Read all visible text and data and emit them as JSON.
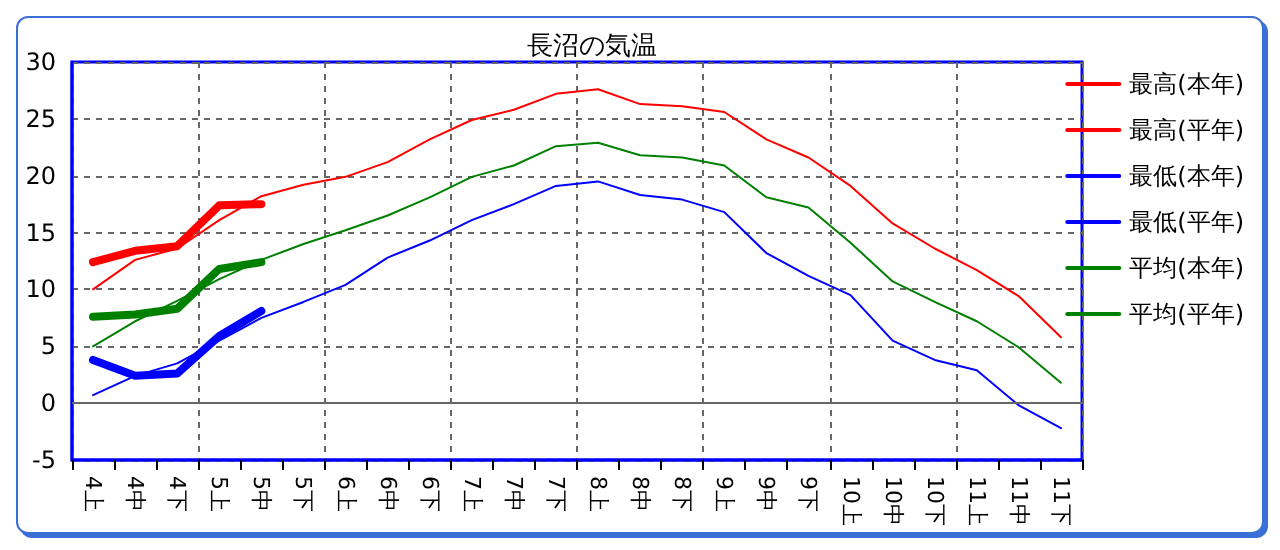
{
  "chart_data": {
    "type": "line",
    "title": "長沼の気温",
    "categories": [
      "4上",
      "4中",
      "4下",
      "5上",
      "5中",
      "5下",
      "6上",
      "6中",
      "6下",
      "7上",
      "7中",
      "7下",
      "8上",
      "8中",
      "8下",
      "9上",
      "9中",
      "9下",
      "10上",
      "10中",
      "10下",
      "11上",
      "11中",
      "11下"
    ],
    "series": [
      {
        "name": "最高(本年)",
        "color": "#ff0000",
        "values": [
          12.4,
          13.4,
          13.8,
          17.4,
          17.5,
          null,
          null,
          null,
          null,
          null,
          null,
          null,
          null,
          null,
          null,
          null,
          null,
          null,
          null,
          null,
          null,
          null,
          null,
          null
        ]
      },
      {
        "name": "最高(平年)",
        "color": "#ff0000",
        "values": [
          10.0,
          12.6,
          13.6,
          16.1,
          18.2,
          19.2,
          19.9,
          21.2,
          23.2,
          24.9,
          25.8,
          27.2,
          27.6,
          26.3,
          26.1,
          25.6,
          23.2,
          21.6,
          19.1,
          15.8,
          13.6,
          11.7,
          9.4,
          5.8
        ]
      },
      {
        "name": "最低(本年)",
        "color": "#0000ff",
        "values": [
          3.8,
          2.4,
          2.6,
          5.9,
          8.1,
          null,
          null,
          null,
          null,
          null,
          null,
          null,
          null,
          null,
          null,
          null,
          null,
          null,
          null,
          null,
          null,
          null,
          null,
          null
        ]
      },
      {
        "name": "最低(平年)",
        "color": "#0000ff",
        "values": [
          0.7,
          2.4,
          3.5,
          5.5,
          7.5,
          8.9,
          10.4,
          12.8,
          14.3,
          16.1,
          17.5,
          19.1,
          19.5,
          18.3,
          17.9,
          16.8,
          13.2,
          11.2,
          9.5,
          5.5,
          3.8,
          2.9,
          -0.2,
          -2.2
        ]
      },
      {
        "name": "平均(本年)",
        "color": "#008000",
        "values": [
          7.6,
          7.8,
          8.3,
          11.8,
          12.4,
          null,
          null,
          null,
          null,
          null,
          null,
          null,
          null,
          null,
          null,
          null,
          null,
          null,
          null,
          null,
          null,
          null,
          null,
          null
        ]
      },
      {
        "name": "平均(平年)",
        "color": "#008000",
        "values": [
          5.0,
          7.2,
          9.0,
          10.9,
          12.6,
          14.0,
          15.2,
          16.5,
          18.1,
          19.9,
          20.9,
          22.6,
          22.9,
          21.8,
          21.6,
          20.9,
          18.1,
          17.2,
          14.1,
          10.7,
          8.9,
          7.2,
          4.9,
          1.8
        ]
      }
    ],
    "ylim": [
      -5,
      30
    ],
    "yticks": [
      -5,
      0,
      5,
      10,
      15,
      20,
      25,
      30
    ],
    "ref_lines": [
      {
        "axis": "y",
        "value": 0,
        "color": "#666666"
      }
    ],
    "grid": true,
    "legend": "right",
    "marker": "none",
    "line_style": "solid"
  }
}
